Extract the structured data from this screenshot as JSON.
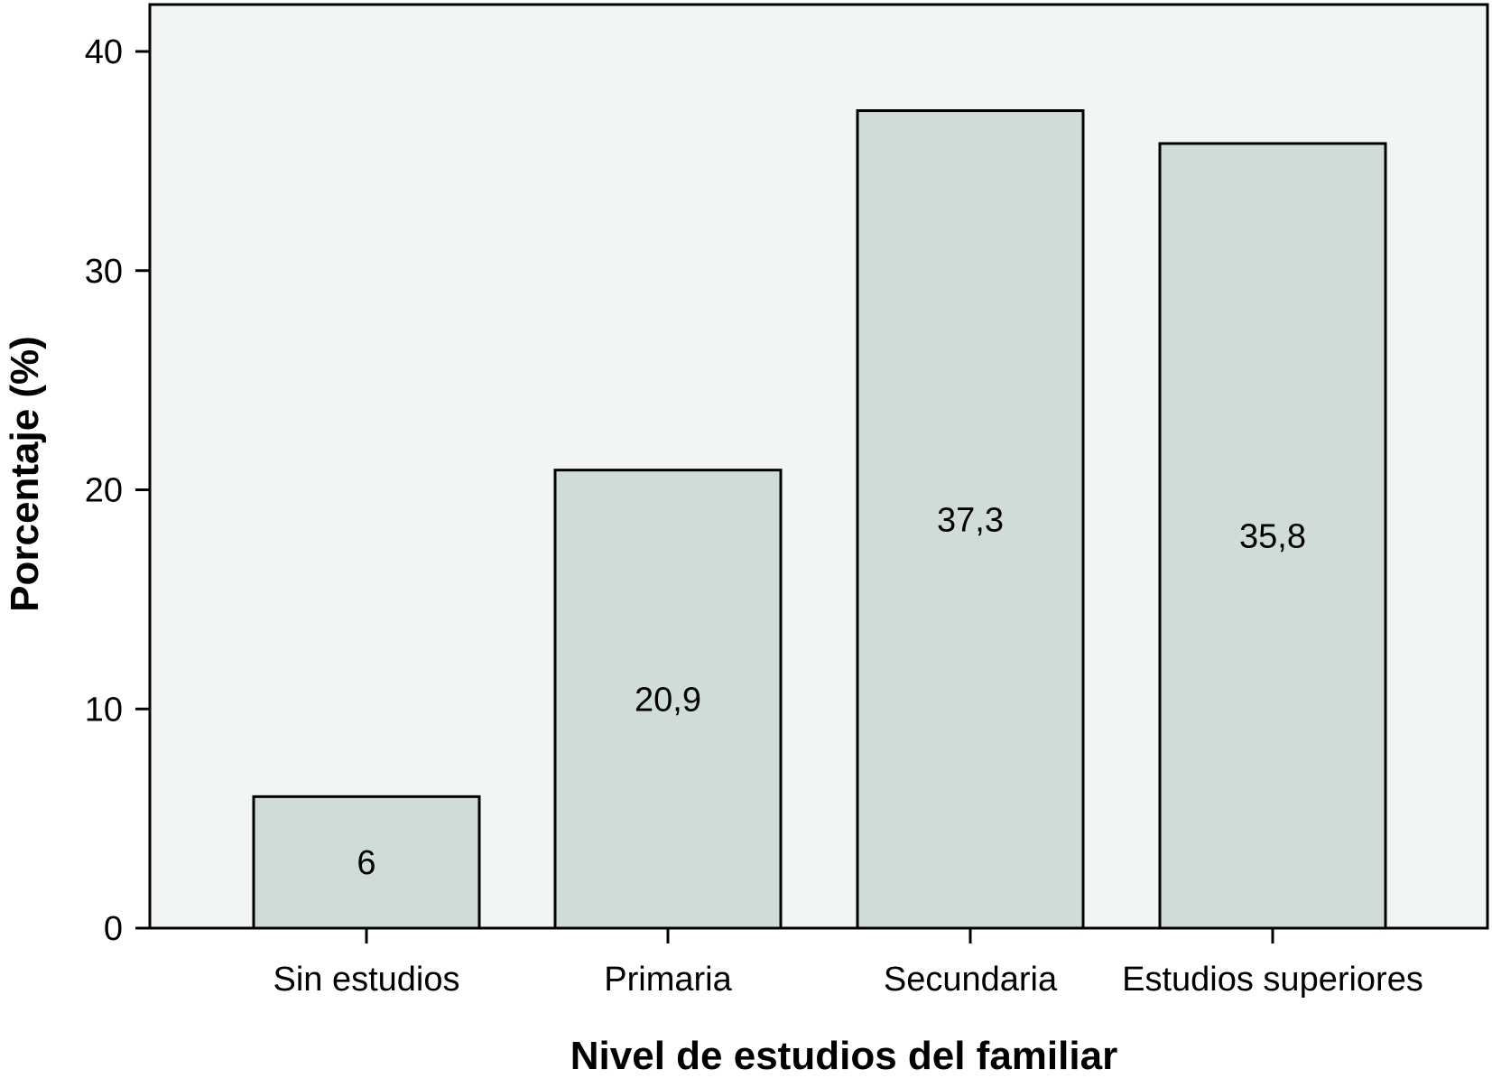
{
  "chart_data": {
    "type": "bar",
    "categories": [
      "Sin estudios",
      "Primaria",
      "Secundaria",
      "Estudios superiores"
    ],
    "values": [
      6,
      20.9,
      37.3,
      35.8
    ],
    "value_labels": [
      "6",
      "20,9",
      "37,3",
      "35,8"
    ],
    "xlabel": "Nivel de estudios del familiar",
    "ylabel": "Porcentaje (%)",
    "ylim": [
      0,
      40
    ],
    "yticks": [
      0,
      10,
      20,
      30,
      40
    ],
    "ytick_labels": [
      "0",
      "10",
      "20",
      "30",
      "40"
    ],
    "grid": false,
    "colors": {
      "plot_background": "#f1f5f3",
      "bar_fill": "#cfdcd8",
      "bar_stroke": "#000000"
    }
  }
}
